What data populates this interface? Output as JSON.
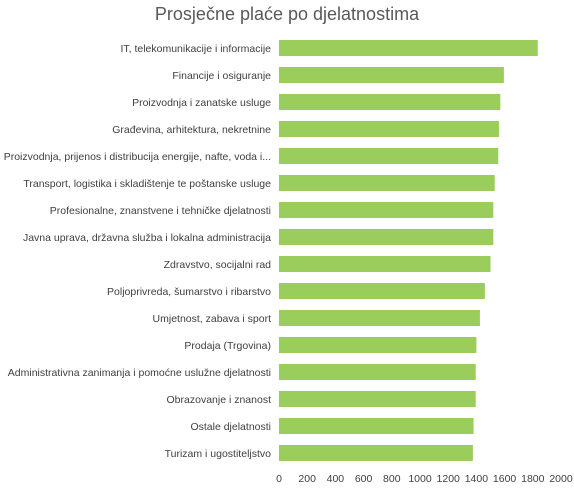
{
  "chart_data": {
    "type": "bar",
    "orientation": "horizontal",
    "title": "Prosječne plaće po djelatnostima",
    "xlabel": "",
    "ylabel": "",
    "categories": [
      "IT, telekomunikacije i informacije",
      "Financije i osiguranje",
      "Proizvodnja i zanatske usluge",
      "Građevina, arhitektura, nekretnine",
      "Proizvodnja, prijenos i distribucija energije, nafte, voda i...",
      "Transport, logistika i skladištenje te poštanske usluge",
      "Profesionalne, znanstvene i tehničke djelatnosti",
      "Javna uprava, državna služba i lokalna administracija",
      "Zdravstvo, socijalni rad",
      "Poljoprivreda, šumarstvo i ribarstvo",
      "Umjetnost, zabava i sport",
      "Prodaja (Trgovina)",
      "Administrativna zanimanja i pomoćne uslužne djelatnosti",
      "Obrazovanje i znanost",
      "Ostale djelatnosti",
      "Turizam i ugostiteljstvo"
    ],
    "values": [
      1835,
      1595,
      1570,
      1560,
      1555,
      1530,
      1520,
      1520,
      1500,
      1460,
      1425,
      1400,
      1395,
      1395,
      1380,
      1375
    ],
    "xlim": [
      0,
      2000
    ],
    "xticks": [
      0,
      200,
      400,
      600,
      800,
      1000,
      1200,
      1400,
      1600,
      1800,
      2000
    ],
    "bar_color": "#9ACD5B",
    "grid": false,
    "legend": "none"
  }
}
